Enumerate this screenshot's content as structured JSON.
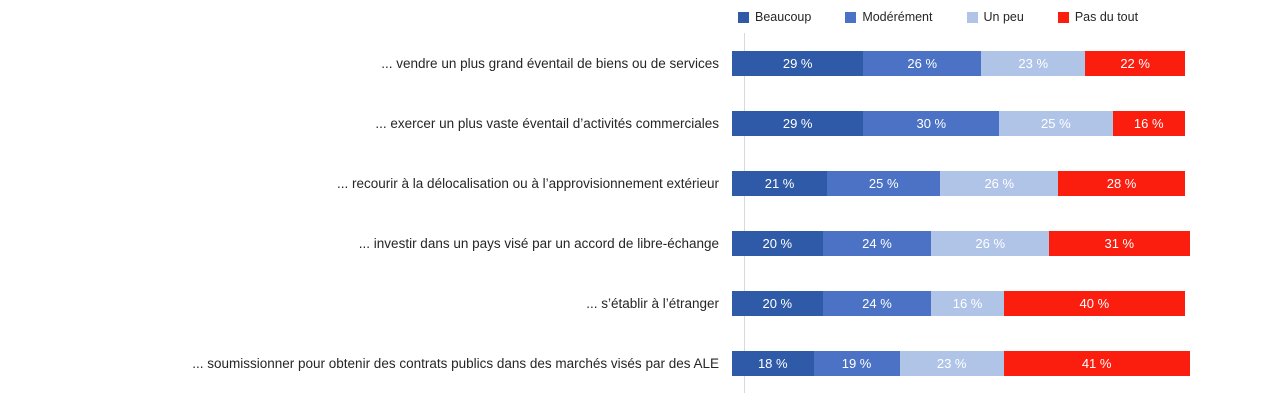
{
  "chart_data": {
    "type": "bar",
    "orientation": "horizontal",
    "stacked": true,
    "grid": false,
    "legend_position": "top",
    "value_suffix": " %",
    "xlim": [
      0,
      100
    ],
    "categories": [
      "... vendre un plus grand éventail de biens ou de services",
      "... exercer un plus vaste éventail d’activités commerciales",
      "... recourir à la délocalisation ou à l’approvisionnement extérieur",
      "... investir dans un pays visé par un accord de libre-échange",
      "... s’établir à l’étranger",
      "... soumissionner pour obtenir des contrats publics dans des marchés visés par des ALE"
    ],
    "series": [
      {
        "name": "Beaucoup",
        "color": "#2e5aa7",
        "values": [
          29,
          29,
          21,
          20,
          20,
          18
        ]
      },
      {
        "name": "Modérément",
        "color": "#4b72c4",
        "values": [
          26,
          30,
          25,
          24,
          24,
          19
        ]
      },
      {
        "name": "Un peu",
        "color": "#b0c4e8",
        "values": [
          23,
          25,
          26,
          26,
          16,
          23
        ]
      },
      {
        "name": "Pas du tout",
        "color": "#fb1d0e",
        "values": [
          22,
          16,
          28,
          31,
          40,
          41
        ]
      }
    ]
  },
  "colors": {
    "axis_line": "#d9d9d9",
    "category_text": "#262626",
    "value_text": "#ffffff",
    "legend_text": "#262626"
  }
}
